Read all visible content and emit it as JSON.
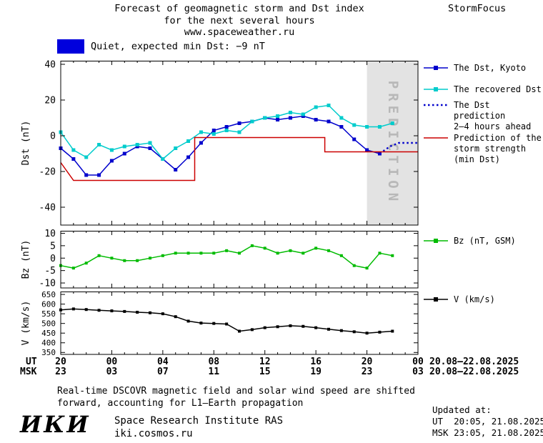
{
  "header": {
    "title_line1": "Forecast of geomagnetic storm and Dst index",
    "title_line2": "for the next several hours",
    "title_line3": "www.spaceweather.ru",
    "brand": "StormFocus"
  },
  "banner": {
    "label": "Quiet, expected min Dst: −9 nT",
    "color": "#0000dd"
  },
  "legend": {
    "items": [
      {
        "lines": [
          "The Dst, Kyoto"
        ],
        "color": "#0000cc",
        "marker": "square",
        "line": "solid"
      },
      {
        "lines": [
          "The recovered Dst"
        ],
        "color": "#00cccc",
        "marker": "square",
        "line": "solid"
      },
      {
        "lines": [
          "The Dst prediction",
          "2–4 hours ahead"
        ],
        "color": "#0000cc",
        "marker": "none",
        "line": "dotted"
      },
      {
        "lines": [
          "Prediction of the",
          "storm strength",
          "(min Dst)"
        ],
        "color": "#cc0000",
        "marker": "none",
        "line": "solid"
      },
      {
        "lines": [
          "Bz (nT, GSM)"
        ],
        "color": "#00bb00",
        "marker": "square",
        "line": "solid"
      },
      {
        "lines": [
          "V (km/s)"
        ],
        "color": "#000000",
        "marker": "square",
        "line": "solid"
      }
    ]
  },
  "axis": {
    "ut_label": "UT",
    "msk_label": "MSK",
    "ut_ticks": [
      "20",
      "00",
      "04",
      "08",
      "12",
      "16",
      "20",
      "00"
    ],
    "msk_ticks": [
      "23",
      "03",
      "07",
      "11",
      "15",
      "19",
      "23",
      "03"
    ],
    "ut_daterange": "20.08–22.08.2025",
    "msk_daterange": "20.08–22.08.2025"
  },
  "footer": {
    "note_line1": "Real-time DSCOVR magnetic field and solar wind speed are shifted",
    "note_line2": "forward, accounting for L1–Earth propagation",
    "updated_label": "Updated at:",
    "updated_ut": "UT  20:05, 21.08.2025",
    "updated_msk": "MSK 23:05, 21.08.2025",
    "logo": "ИКИ",
    "institute": "Space Research Institute RAS",
    "site": "iki.cosmos.ru"
  },
  "chart_data": [
    {
      "type": "line",
      "name": "dst-panel",
      "ylabel": "Dst (nT)",
      "ylim": [
        -50,
        42
      ],
      "yticks": [
        40,
        20,
        0,
        -20,
        -40
      ],
      "xlim": [
        0,
        28
      ],
      "xticks": [
        0,
        4,
        8,
        12,
        16,
        20,
        24,
        28
      ],
      "prediction_band": {
        "x_start": 24,
        "x_end": 28,
        "label": "PREDICTION"
      },
      "series": [
        {
          "name": "The Dst, Kyoto",
          "color": "#0000cc",
          "marker": "square",
          "marker_size": 5,
          "line": "solid",
          "x": [
            0,
            1,
            2,
            3,
            4,
            5,
            6,
            7,
            8,
            9,
            10,
            11,
            12,
            13,
            14,
            15,
            16,
            17,
            18,
            19,
            20,
            21,
            22,
            23,
            24,
            25
          ],
          "y": [
            -7,
            -13,
            -22,
            -22,
            -14,
            -10,
            -6,
            -7,
            -13,
            -19,
            -12,
            -4,
            3,
            5,
            7,
            8,
            10,
            9,
            10,
            11,
            9,
            8,
            5,
            -2,
            -8,
            -10
          ]
        },
        {
          "name": "The recovered Dst",
          "color": "#00cccc",
          "marker": "square",
          "marker_size": 5,
          "line": "solid",
          "x": [
            0,
            1,
            2,
            3,
            4,
            5,
            6,
            7,
            8,
            9,
            10,
            11,
            12,
            13,
            14,
            15,
            16,
            17,
            18,
            19,
            20,
            21,
            22,
            23,
            24,
            25,
            26
          ],
          "y": [
            2,
            -8,
            -12,
            -5,
            -8,
            -6,
            -5,
            -4,
            -13,
            -7,
            -3,
            2,
            1,
            3,
            2,
            8,
            10,
            11,
            13,
            12,
            16,
            17,
            10,
            6,
            5,
            5,
            7
          ]
        },
        {
          "name": "The Dst prediction 2–4 hours ahead",
          "color": "#0000cc",
          "marker": "none",
          "line": "dotted",
          "x": [
            25,
            25.8,
            26.5,
            28
          ],
          "y": [
            -10,
            -6,
            -4,
            -4
          ]
        },
        {
          "name": "Prediction of the storm strength (min Dst)",
          "color": "#cc0000",
          "marker": "none",
          "line": "solid",
          "x": [
            0,
            1,
            10.5,
            10.5,
            20.7,
            20.7,
            28
          ],
          "y": [
            -15,
            -25,
            -25,
            -1,
            -1,
            -9,
            -9
          ]
        }
      ]
    },
    {
      "type": "line",
      "name": "bz-panel",
      "ylabel": "Bz (nT)",
      "ylim": [
        -12,
        11
      ],
      "yticks": [
        10,
        5,
        0,
        -5,
        -10
      ],
      "xlim": [
        0,
        28
      ],
      "xticks": [
        0,
        4,
        8,
        12,
        16,
        20,
        24,
        28
      ],
      "series": [
        {
          "name": "Bz (nT, GSM)",
          "color": "#00bb00",
          "marker": "square",
          "marker_size": 4,
          "line": "solid",
          "x": [
            0,
            1,
            2,
            3,
            4,
            5,
            6,
            7,
            8,
            9,
            10,
            11,
            12,
            13,
            14,
            15,
            16,
            17,
            18,
            19,
            20,
            21,
            22,
            23,
            24,
            25,
            26
          ],
          "y": [
            -3,
            -4,
            -2,
            1,
            0,
            -1,
            -1,
            0,
            1,
            2,
            2,
            2,
            2,
            3,
            2,
            5,
            4,
            2,
            3,
            2,
            4,
            3,
            1,
            -3,
            -4,
            2,
            1
          ]
        }
      ]
    },
    {
      "type": "line",
      "name": "v-panel",
      "ylabel": "V (km/s)",
      "ylim": [
        340,
        665
      ],
      "yticks": [
        650,
        600,
        550,
        500,
        450,
        400,
        350
      ],
      "xlim": [
        0,
        28
      ],
      "xticks": [
        0,
        4,
        8,
        12,
        16,
        20,
        24,
        28
      ],
      "series": [
        {
          "name": "V (km/s)",
          "color": "#000000",
          "marker": "square",
          "marker_size": 4,
          "line": "solid",
          "x": [
            0,
            1,
            2,
            3,
            4,
            5,
            6,
            7,
            8,
            9,
            10,
            11,
            12,
            13,
            14,
            15,
            16,
            17,
            18,
            19,
            20,
            21,
            22,
            23,
            24,
            25,
            26
          ],
          "y": [
            570,
            575,
            572,
            568,
            565,
            562,
            558,
            555,
            550,
            535,
            512,
            502,
            500,
            497,
            460,
            468,
            478,
            483,
            488,
            485,
            478,
            470,
            463,
            457,
            450,
            455,
            460
          ]
        }
      ]
    }
  ]
}
